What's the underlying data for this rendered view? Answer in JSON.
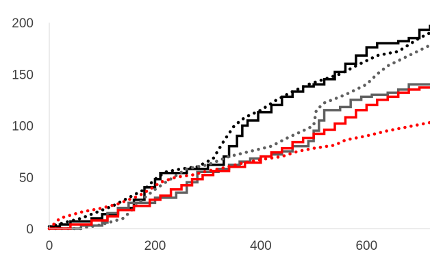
{
  "chart_data": {
    "type": "line",
    "title": "",
    "xlabel": "",
    "ylabel": "",
    "xlim": [
      0,
      720
    ],
    "ylim": [
      0,
      200
    ],
    "x_ticks": [
      0,
      200,
      400,
      600
    ],
    "y_ticks": [
      0,
      50,
      100,
      150,
      200
    ],
    "x_tick_labels": [
      "0",
      "200",
      "400",
      "600"
    ],
    "y_tick_labels": [
      "0",
      "50",
      "100",
      "150",
      "200"
    ],
    "grid": false,
    "legend": "none",
    "series": [
      {
        "color": "#000000",
        "style": "solid-step",
        "points": [
          [
            0,
            2
          ],
          [
            20,
            4
          ],
          [
            40,
            7
          ],
          [
            80,
            10
          ],
          [
            100,
            14
          ],
          [
            130,
            20
          ],
          [
            160,
            28
          ],
          [
            180,
            40
          ],
          [
            200,
            48
          ],
          [
            210,
            54
          ],
          [
            260,
            58
          ],
          [
            300,
            62
          ],
          [
            330,
            70
          ],
          [
            340,
            80
          ],
          [
            355,
            90
          ],
          [
            365,
            100
          ],
          [
            375,
            105
          ],
          [
            395,
            113
          ],
          [
            420,
            120
          ],
          [
            440,
            128
          ],
          [
            460,
            133
          ],
          [
            480,
            138
          ],
          [
            500,
            140
          ],
          [
            520,
            145
          ],
          [
            540,
            152
          ],
          [
            560,
            160
          ],
          [
            580,
            168
          ],
          [
            600,
            176
          ],
          [
            620,
            180
          ],
          [
            660,
            182
          ],
          [
            680,
            185
          ],
          [
            700,
            193
          ],
          [
            720,
            198
          ]
        ]
      },
      {
        "color": "#000000",
        "style": "dotted",
        "points": [
          [
            0,
            2
          ],
          [
            30,
            6
          ],
          [
            60,
            10
          ],
          [
            90,
            16
          ],
          [
            120,
            22
          ],
          [
            150,
            30
          ],
          [
            180,
            38
          ],
          [
            200,
            48
          ],
          [
            220,
            55
          ],
          [
            250,
            58
          ],
          [
            280,
            60
          ],
          [
            310,
            68
          ],
          [
            330,
            85
          ],
          [
            350,
            100
          ],
          [
            370,
            108
          ],
          [
            400,
            115
          ],
          [
            430,
            125
          ],
          [
            460,
            133
          ],
          [
            490,
            140
          ],
          [
            520,
            145
          ],
          [
            550,
            150
          ],
          [
            580,
            158
          ],
          [
            620,
            168
          ],
          [
            660,
            172
          ],
          [
            700,
            185
          ],
          [
            720,
            190
          ]
        ]
      },
      {
        "color": "#606060",
        "style": "solid-step",
        "points": [
          [
            0,
            0
          ],
          [
            30,
            0
          ],
          [
            60,
            3
          ],
          [
            100,
            6
          ],
          [
            110,
            15
          ],
          [
            130,
            20
          ],
          [
            150,
            25
          ],
          [
            180,
            25
          ],
          [
            200,
            30
          ],
          [
            220,
            30
          ],
          [
            240,
            35
          ],
          [
            260,
            45
          ],
          [
            280,
            55
          ],
          [
            300,
            55
          ],
          [
            320,
            58
          ],
          [
            340,
            62
          ],
          [
            360,
            65
          ],
          [
            380,
            68
          ],
          [
            400,
            70
          ],
          [
            420,
            72
          ],
          [
            440,
            75
          ],
          [
            460,
            80
          ],
          [
            480,
            80
          ],
          [
            490,
            85
          ],
          [
            500,
            95
          ],
          [
            510,
            105
          ],
          [
            520,
            115
          ],
          [
            550,
            118
          ],
          [
            570,
            125
          ],
          [
            590,
            128
          ],
          [
            610,
            130
          ],
          [
            640,
            132
          ],
          [
            660,
            135
          ],
          [
            680,
            140
          ],
          [
            720,
            140
          ]
        ]
      },
      {
        "color": "#606060",
        "style": "dotted",
        "points": [
          [
            0,
            0
          ],
          [
            60,
            0
          ],
          [
            100,
            4
          ],
          [
            140,
            10
          ],
          [
            160,
            20
          ],
          [
            180,
            30
          ],
          [
            200,
            38
          ],
          [
            220,
            45
          ],
          [
            260,
            58
          ],
          [
            300,
            62
          ],
          [
            340,
            70
          ],
          [
            380,
            75
          ],
          [
            420,
            80
          ],
          [
            450,
            88
          ],
          [
            480,
            95
          ],
          [
            500,
            100
          ],
          [
            505,
            115
          ],
          [
            520,
            122
          ],
          [
            560,
            130
          ],
          [
            600,
            140
          ],
          [
            620,
            150
          ],
          [
            640,
            158
          ],
          [
            660,
            163
          ],
          [
            680,
            168
          ],
          [
            700,
            173
          ],
          [
            720,
            178
          ]
        ]
      },
      {
        "color": "#ff0000",
        "style": "solid-step",
        "points": [
          [
            0,
            0
          ],
          [
            40,
            4
          ],
          [
            80,
            8
          ],
          [
            110,
            12
          ],
          [
            130,
            18
          ],
          [
            160,
            22
          ],
          [
            190,
            28
          ],
          [
            210,
            32
          ],
          [
            230,
            38
          ],
          [
            250,
            42
          ],
          [
            270,
            48
          ],
          [
            290,
            52
          ],
          [
            310,
            56
          ],
          [
            340,
            60
          ],
          [
            370,
            64
          ],
          [
            400,
            70
          ],
          [
            420,
            74
          ],
          [
            440,
            78
          ],
          [
            460,
            84
          ],
          [
            480,
            88
          ],
          [
            500,
            92
          ],
          [
            520,
            96
          ],
          [
            540,
            102
          ],
          [
            560,
            108
          ],
          [
            580,
            115
          ],
          [
            600,
            120
          ],
          [
            620,
            125
          ],
          [
            640,
            128
          ],
          [
            660,
            132
          ],
          [
            680,
            135
          ],
          [
            700,
            137
          ],
          [
            720,
            138
          ]
        ]
      },
      {
        "color": "#ff0000",
        "style": "dotted",
        "points": [
          [
            0,
            0
          ],
          [
            20,
            10
          ],
          [
            60,
            16
          ],
          [
            100,
            20
          ],
          [
            130,
            24
          ],
          [
            170,
            32
          ],
          [
            190,
            38
          ],
          [
            210,
            45
          ],
          [
            240,
            50
          ],
          [
            270,
            52
          ],
          [
            300,
            56
          ],
          [
            330,
            59
          ],
          [
            360,
            63
          ],
          [
            400,
            67
          ],
          [
            440,
            70
          ],
          [
            470,
            75
          ],
          [
            500,
            78
          ],
          [
            540,
            81
          ],
          [
            560,
            86
          ],
          [
            600,
            90
          ],
          [
            640,
            95
          ],
          [
            680,
            99
          ],
          [
            720,
            103
          ]
        ]
      }
    ]
  }
}
